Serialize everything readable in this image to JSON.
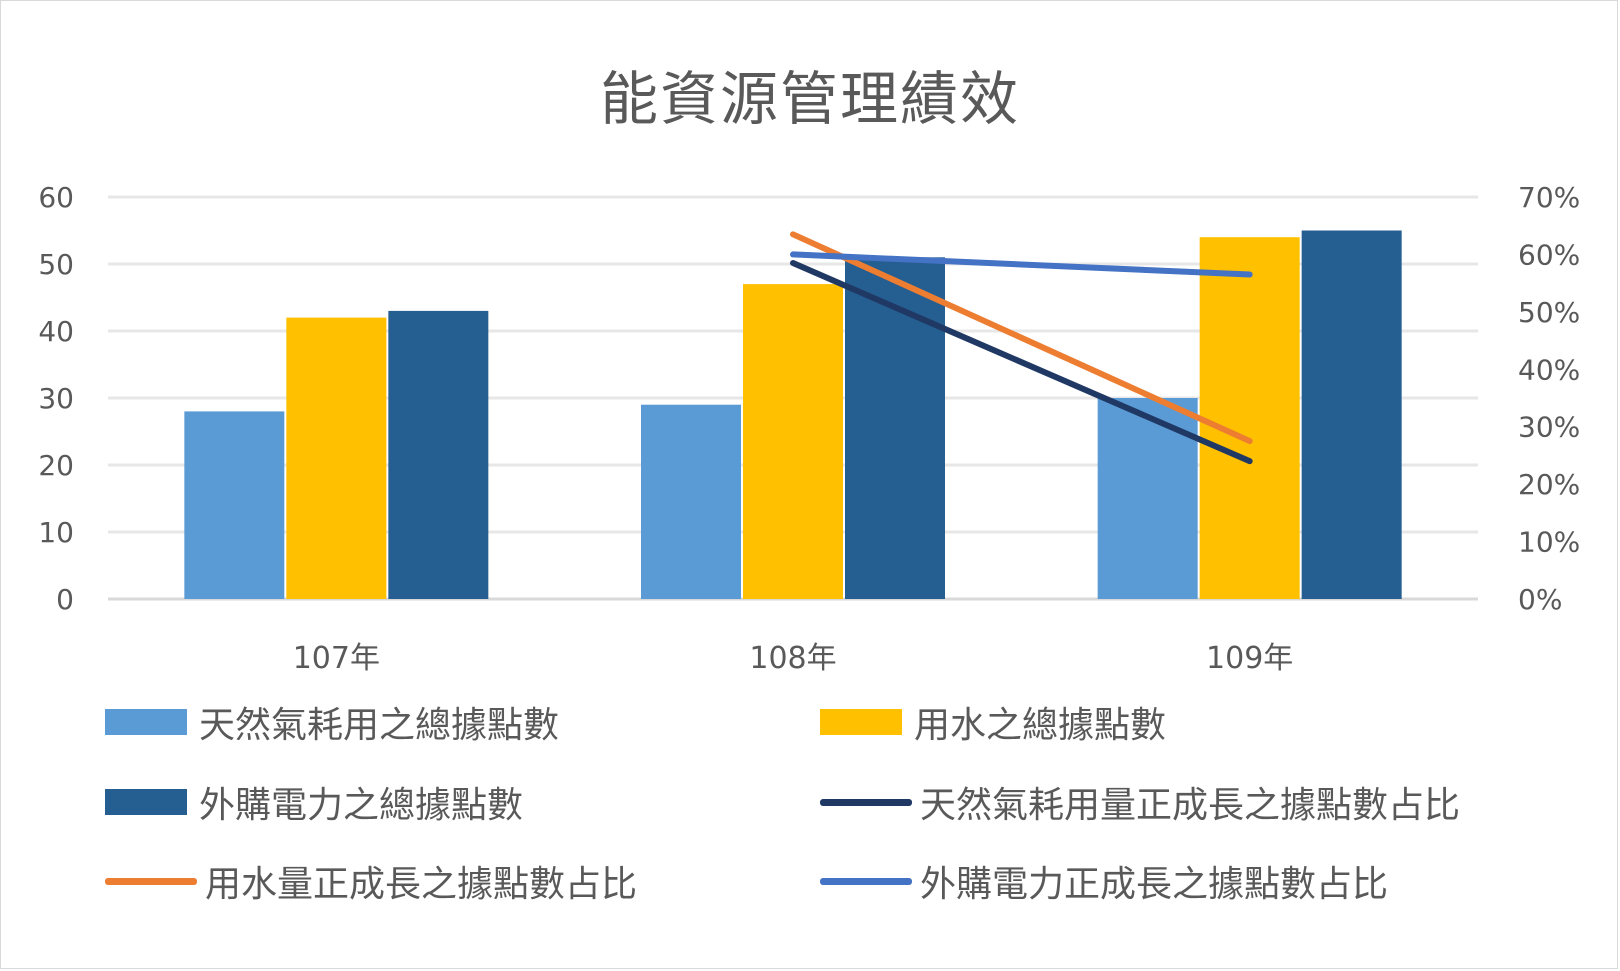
{
  "chart_data": {
    "type": "bar",
    "title": "能資源管理績效",
    "categories": [
      "107年",
      "108年",
      "109年"
    ],
    "ylim": [
      0,
      60
    ],
    "yticks": [
      "0",
      "10",
      "20",
      "30",
      "40",
      "50",
      "60"
    ],
    "y2lim": [
      0,
      0.7
    ],
    "y2ticks": [
      "0%",
      "10%",
      "20%",
      "30%",
      "40%",
      "50%",
      "60%",
      "70%"
    ],
    "grid": true,
    "legend_position": "bottom",
    "series": [
      {
        "name": "天然氣耗用之總據點數",
        "kind": "bar",
        "axis": "left",
        "color": "#5b9bd5",
        "values": [
          28,
          29,
          30
        ]
      },
      {
        "name": "用水之總據點數",
        "kind": "bar",
        "axis": "left",
        "color": "#ffc000",
        "values": [
          42,
          47,
          54
        ]
      },
      {
        "name": "外購電力之總據點數",
        "kind": "bar",
        "axis": "left",
        "color": "#255e91",
        "values": [
          43,
          51,
          55
        ]
      },
      {
        "name": "天然氣耗用量正成長之據點數占比",
        "kind": "line",
        "axis": "right",
        "color": "#203864",
        "values": [
          null,
          0.585,
          0.24
        ]
      },
      {
        "name": "用水量正成長之據點數占比",
        "kind": "line",
        "axis": "right",
        "color": "#ed7d31",
        "values": [
          null,
          0.635,
          0.275
        ]
      },
      {
        "name": "外購電力正成長之據點數占比",
        "kind": "line",
        "axis": "right",
        "color": "#4472c4",
        "values": [
          null,
          0.6,
          0.565
        ]
      }
    ]
  }
}
